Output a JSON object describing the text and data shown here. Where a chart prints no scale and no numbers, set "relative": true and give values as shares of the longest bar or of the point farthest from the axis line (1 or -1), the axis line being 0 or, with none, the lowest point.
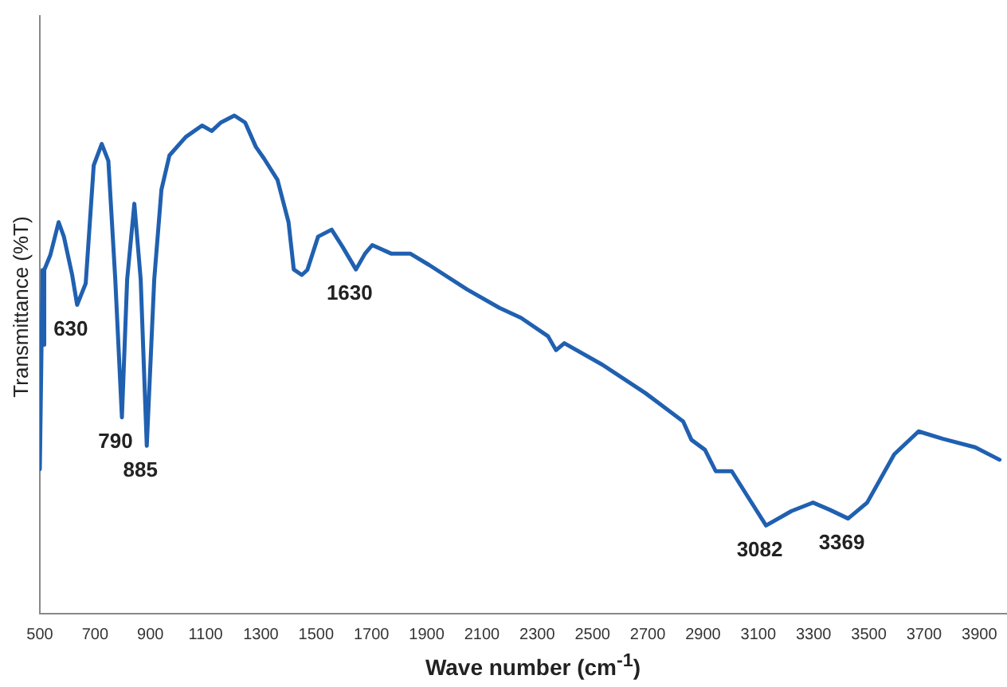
{
  "chart_data": {
    "type": "line",
    "relative": true,
    "xlabel": "Wave number (cm$^{-1}$)",
    "ylabel": "Transmittance (%T)",
    "xlim": [
      500,
      4000
    ],
    "xticks": [
      500,
      700,
      900,
      1100,
      1300,
      1500,
      1700,
      1900,
      2100,
      2300,
      2500,
      2700,
      2900,
      3100,
      3300,
      3500,
      3700,
      3900
    ],
    "grid": false,
    "legend": false,
    "marker": "none",
    "line_style": "solid",
    "series": [
      {
        "color": "#2060b0",
        "x": [
          500,
          510,
          513,
          516,
          538,
          568,
          587,
          617,
          635,
          666,
          695,
          724,
          748,
          773,
          797,
          816,
          842,
          865,
          887,
          914,
          940,
          969,
          1028,
          1087,
          1122,
          1155,
          1204,
          1243,
          1282,
          1311,
          1360,
          1400,
          1419,
          1448,
          1468,
          1507,
          1556,
          1595,
          1644,
          1677,
          1703,
          1771,
          1840,
          1909,
          2046,
          2163,
          2241,
          2339,
          2368,
          2398,
          2535,
          2691,
          2828,
          2858,
          2907,
          2946,
          3004,
          3063,
          3128,
          3220,
          3298,
          3357,
          3425,
          3494,
          3592,
          3680,
          3768,
          3885,
          3973
        ],
        "values": [
          0.29,
          0.69,
          0.54,
          0.69,
          0.72,
          0.786,
          0.757,
          0.68,
          0.62,
          0.663,
          0.9,
          0.943,
          0.909,
          0.671,
          0.394,
          0.671,
          0.823,
          0.671,
          0.337,
          0.671,
          0.851,
          0.92,
          0.957,
          0.98,
          0.969,
          0.986,
          1,
          0.986,
          0.937,
          0.914,
          0.871,
          0.786,
          0.691,
          0.68,
          0.69,
          0.757,
          0.771,
          0.737,
          0.691,
          0.723,
          0.74,
          0.723,
          0.723,
          0.7,
          0.651,
          0.614,
          0.594,
          0.557,
          0.529,
          0.543,
          0.5,
          0.443,
          0.386,
          0.349,
          0.329,
          0.286,
          0.286,
          0.234,
          0.177,
          0.206,
          0.223,
          0.209,
          0.191,
          0.223,
          0.32,
          0.366,
          0.351,
          0.334,
          0.309
        ]
      }
    ],
    "annotations": [
      {
        "text": "630",
        "x": 635,
        "y": 0.62
      },
      {
        "text": "790",
        "x": 797,
        "y": 0.394
      },
      {
        "text": "885",
        "x": 887,
        "y": 0.337
      },
      {
        "text": "1630",
        "x": 1644,
        "y": 0.691
      },
      {
        "text": "3082",
        "x": 3128,
        "y": 0.177
      },
      {
        "text": "3369",
        "x": 3425,
        "y": 0.191
      }
    ]
  }
}
